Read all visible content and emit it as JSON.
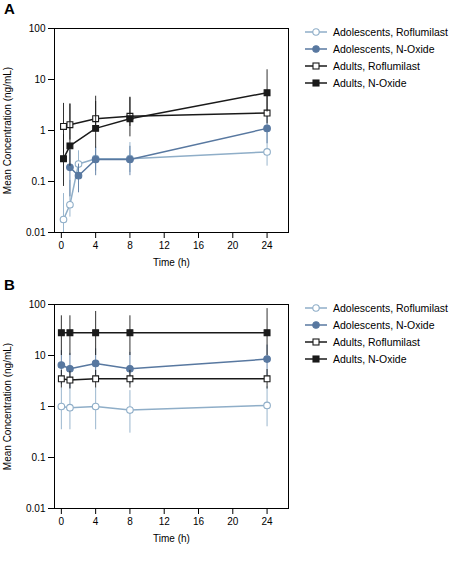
{
  "chart_data": [
    {
      "type": "line",
      "title": "A",
      "xlabel": "Time (h)",
      "ylabel": "Mean Concentration (ng/mL)",
      "xlim": [
        -0.8,
        26.5
      ],
      "xticks": [
        0,
        4,
        8,
        12,
        16,
        20,
        24
      ],
      "ylim": [
        0.01,
        100
      ],
      "yticks": [
        0.01,
        0.1,
        1,
        10,
        100
      ],
      "log": "y",
      "grid": false,
      "legend": "right",
      "series": [
        {
          "name": "Adolescents, Roflumilast",
          "color": "#8faec8",
          "marker": "open circle",
          "x": [
            0.25,
            1,
            2,
            4,
            8,
            24
          ],
          "values": [
            0.018,
            0.035,
            0.22,
            0.28,
            0.28,
            0.38
          ],
          "err_lo": [
            0.008,
            0.015,
            0.1,
            0.12,
            0.13,
            0.18
          ],
          "err_hi": [
            0.04,
            0.07,
            0.18,
            0.18,
            0.3,
            0.6
          ]
        },
        {
          "name": "Adolescents, N-Oxide",
          "color": "#5878a0",
          "marker": "circle",
          "x": [
            1,
            2,
            4,
            8,
            24
          ],
          "values": [
            0.19,
            0.13,
            0.27,
            0.27,
            1.1
          ],
          "err_lo": [
            0.14,
            0.07,
            0.14,
            0.14,
            0.55
          ],
          "err_hi": [
            0.22,
            0.09,
            0.2,
            0.22,
            0.9
          ]
        },
        {
          "name": "Adults, Roflumilast",
          "color": "#1a1a1a",
          "marker": "open square",
          "x": [
            0.25,
            1,
            4,
            8,
            24
          ],
          "values": [
            1.2,
            1.3,
            1.7,
            1.9,
            2.2
          ],
          "err_lo": [
            0.85,
            0.65,
            0.75,
            0.7,
            0.85
          ],
          "err_hi": [
            2.2,
            2.0,
            3.0,
            2.5,
            3.2
          ]
        },
        {
          "name": "Adults, N-Oxide",
          "color": "#1a1a1a",
          "marker": "square",
          "x": [
            0.25,
            1,
            4,
            8,
            24
          ],
          "values": [
            0.28,
            0.5,
            1.1,
            1.7,
            5.5
          ],
          "err_lo": [
            0.2,
            0.3,
            0.65,
            0.95,
            3.2
          ],
          "err_hi": [
            0.55,
            2.8,
            2.6,
            2.8,
            10.0
          ]
        }
      ]
    },
    {
      "type": "line",
      "title": "B",
      "xlabel": "Time (h)",
      "ylabel": "Mean Concentration (ng/mL)",
      "xlim": [
        -0.8,
        26.5
      ],
      "xticks": [
        0,
        4,
        8,
        12,
        16,
        20,
        24
      ],
      "ylim": [
        0.01,
        100
      ],
      "yticks": [
        0.01,
        0.1,
        1,
        10,
        100
      ],
      "log": "y",
      "grid": false,
      "legend": "right",
      "series": [
        {
          "name": "Adolescents, Roflumilast",
          "color": "#8faec8",
          "marker": "open circle",
          "x": [
            0,
            1,
            4,
            8,
            24
          ],
          "values": [
            1.0,
            0.95,
            1.0,
            0.85,
            1.05
          ],
          "err_lo": [
            0.65,
            0.6,
            0.65,
            0.55,
            0.65
          ],
          "err_hi": [
            1.3,
            1.2,
            1.3,
            1.2,
            1.4
          ]
        },
        {
          "name": "Adolescents, N-Oxide",
          "color": "#5878a0",
          "marker": "circle",
          "x": [
            0,
            1,
            4,
            8,
            24
          ],
          "values": [
            6.5,
            5.5,
            7.0,
            5.5,
            8.5
          ],
          "err_lo": [
            3.8,
            3.3,
            3.8,
            2.8,
            4.5
          ],
          "err_hi": [
            6.0,
            5.5,
            6.5,
            6.0,
            7.5
          ]
        },
        {
          "name": "Adults, Roflumilast",
          "color": "#1a1a1a",
          "marker": "open square",
          "x": [
            0,
            1,
            4,
            8,
            24
          ],
          "values": [
            3.5,
            3.3,
            3.5,
            3.5,
            3.5
          ],
          "err_lo": [
            1.2,
            1.1,
            1.2,
            1.2,
            1.3
          ],
          "err_hi": [
            1.6,
            1.6,
            1.6,
            1.6,
            1.8
          ]
        },
        {
          "name": "Adults, N-Oxide",
          "color": "#1a1a1a",
          "marker": "square",
          "x": [
            0,
            1,
            4,
            8,
            24
          ],
          "values": [
            28.0,
            28.0,
            28.0,
            28.0,
            28.0
          ],
          "err_lo": [
            18.0,
            18.0,
            18.0,
            18.0,
            18.0
          ],
          "err_hi": [
            32.0,
            32.0,
            45.0,
            32.0,
            55.0
          ]
        }
      ]
    }
  ]
}
